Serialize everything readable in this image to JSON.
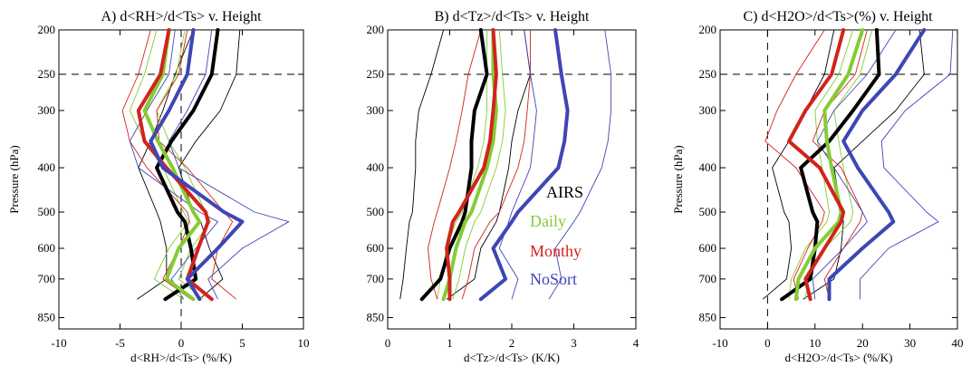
{
  "chart_data": [
    {
      "type": "line",
      "title": "A) d<RH>/d<Ts> v. Height",
      "xlabel": "d<RH>/d<Ts> (%/K)",
      "ylabel": "Pressure (hPa)",
      "xlim": [
        -10,
        10
      ],
      "ylim": [
        200,
        900
      ],
      "y_scale": "log",
      "y_inverted": true,
      "xticks": [
        -10,
        -5,
        0,
        5,
        10
      ],
      "yticks": [
        200,
        250,
        300,
        400,
        500,
        600,
        700,
        850
      ],
      "reference_lines": {
        "x": 0,
        "y": 250
      },
      "pressure": [
        200,
        250,
        300,
        350,
        400,
        500,
        525,
        600,
        700,
        775
      ],
      "series": [
        {
          "name": "AIRS",
          "color": "#000000",
          "values": [
            3.0,
            2.5,
            1.0,
            -0.8,
            -2.0,
            -0.3,
            0.3,
            0.8,
            1.2,
            -1.3
          ],
          "bounds": [
            [
              1.0,
              -0.5,
              -1.5,
              -2.5,
              -3.5,
              -2.0,
              -1.7,
              -1.2,
              -1.2,
              -3.6
            ],
            [
              4.8,
              4.5,
              3.2,
              1.2,
              -0.2,
              1.0,
              1.6,
              2.3,
              3.4,
              1.5
            ]
          ]
        },
        {
          "name": "Daily",
          "color": "#84cc33",
          "values": [
            -1.0,
            -1.5,
            -3.0,
            -1.9,
            -0.7,
            1.0,
            1.5,
            -0.2,
            -1.2,
            1.0
          ],
          "bounds": [
            [
              -2.0,
              -3.0,
              -4.2,
              -3.0,
              -1.5,
              0.2,
              0.6,
              -1.0,
              -2.2,
              0.2
            ],
            [
              0.3,
              -0.4,
              -2.0,
              -1.0,
              0.3,
              2.0,
              2.4,
              0.8,
              -0.2,
              1.8
            ]
          ]
        },
        {
          "name": "Monthy",
          "color": "#d0241c",
          "values": [
            -1.0,
            -1.7,
            -3.5,
            -3.0,
            -1.2,
            2.0,
            2.2,
            1.4,
            0.5,
            2.5
          ],
          "bounds": [
            [
              -2.5,
              -3.5,
              -4.8,
              -4.2,
              -2.8,
              0.5,
              0.7,
              -0.2,
              -1.5,
              0.8
            ],
            [
              0.5,
              -0.2,
              -2.0,
              -1.8,
              0.5,
              3.5,
              4.2,
              3.0,
              2.5,
              4.5
            ]
          ]
        },
        {
          "name": "NoSort",
          "color": "#3f46b4",
          "values": [
            1.0,
            0.5,
            -1.0,
            -2.5,
            -1.5,
            3.5,
            5.0,
            3.0,
            0.5,
            1.5
          ],
          "bounds": [
            [
              -0.5,
              -1.0,
              -2.8,
              -4.2,
              -3.5,
              1.5,
              3.0,
              1.2,
              -0.8,
              0.2
            ],
            [
              2.5,
              2.0,
              0.5,
              -1.0,
              -0.2,
              6.0,
              8.8,
              5.0,
              2.2,
              3.0
            ]
          ]
        }
      ]
    },
    {
      "type": "line",
      "title": "B) d<Tz>/d<Ts> v. Height",
      "xlabel": "d<Tz>/d<Ts> (K/K)",
      "ylabel": "",
      "xlim": [
        0,
        4
      ],
      "ylim": [
        200,
        900
      ],
      "y_scale": "log",
      "y_inverted": true,
      "xticks": [
        0,
        1,
        2,
        3,
        4
      ],
      "yticks": [
        200,
        250,
        300,
        400,
        500,
        600,
        700,
        850
      ],
      "reference_lines": {
        "y": 250
      },
      "pressure": [
        200,
        250,
        300,
        350,
        400,
        500,
        525,
        600,
        700,
        775
      ],
      "series": [
        {
          "name": "AIRS",
          "color": "#000000",
          "values": [
            1.5,
            1.6,
            1.4,
            1.35,
            1.35,
            1.25,
            1.2,
            1.0,
            0.85,
            0.55
          ],
          "bounds": [
            [
              0.9,
              0.7,
              0.5,
              0.45,
              0.45,
              0.4,
              0.35,
              0.3,
              0.25,
              0.2
            ],
            [
              2.2,
              2.3,
              2.1,
              2.0,
              1.95,
              1.8,
              1.75,
              1.5,
              1.4,
              0.95
            ]
          ]
        },
        {
          "name": "Daily",
          "color": "#84cc33",
          "values": [
            1.7,
            1.7,
            1.75,
            1.7,
            1.6,
            1.35,
            1.25,
            1.1,
            1.0,
            0.9
          ],
          "bounds": [
            [
              1.6,
              1.6,
              1.6,
              1.55,
              1.45,
              1.2,
              1.1,
              0.95,
              0.85,
              0.8
            ],
            [
              1.8,
              1.85,
              1.9,
              1.85,
              1.75,
              1.5,
              1.4,
              1.25,
              1.15,
              1.05
            ]
          ]
        },
        {
          "name": "Monthy",
          "color": "#d0241c",
          "values": [
            1.7,
            1.75,
            1.7,
            1.65,
            1.55,
            1.15,
            1.05,
            0.95,
            1.0,
            1.0
          ],
          "bounds": [
            [
              1.5,
              1.3,
              1.2,
              1.1,
              1.0,
              0.8,
              0.75,
              0.65,
              0.7,
              0.8
            ],
            [
              2.3,
              2.3,
              2.25,
              2.2,
              2.1,
              1.8,
              1.65,
              1.4,
              1.3,
              1.2
            ]
          ]
        },
        {
          "name": "NoSort",
          "color": "#3f46b4",
          "values": [
            2.7,
            2.8,
            2.9,
            2.85,
            2.75,
            2.1,
            2.0,
            1.7,
            1.9,
            1.5
          ],
          "bounds": [
            [
              2.2,
              2.3,
              2.4,
              2.35,
              2.3,
              2.0,
              1.95,
              1.8,
              2.1,
              2.0
            ],
            [
              3.5,
              3.6,
              3.6,
              3.55,
              3.45,
              3.1,
              3.0,
              2.7,
              2.8,
              2.6
            ]
          ]
        }
      ]
    },
    {
      "type": "line",
      "title": "C) d<H2O>/d<Ts>(%) v. Height",
      "xlabel": "d<H2O>/d<Ts> (%/K)",
      "ylabel": "Pressure (hPa)",
      "xlim": [
        -10,
        40
      ],
      "ylim": [
        200,
        900
      ],
      "y_scale": "log",
      "y_inverted": true,
      "xticks": [
        -10,
        0,
        10,
        20,
        30,
        40
      ],
      "yticks": [
        200,
        250,
        300,
        400,
        500,
        600,
        700,
        850
      ],
      "reference_lines": {
        "x": 0,
        "y": 250
      },
      "pressure": [
        200,
        250,
        300,
        350,
        400,
        500,
        525,
        600,
        700,
        775
      ],
      "series": [
        {
          "name": "AIRS",
          "color": "#000000",
          "values": [
            23.0,
            23.5,
            18.0,
            13.0,
            7.0,
            9.5,
            10.5,
            10.0,
            9.0,
            3.0
          ],
          "bounds": [
            [
              14.0,
              12.0,
              8.0,
              4.5,
              1.0,
              3.5,
              4.5,
              5.0,
              4.0,
              -1.0
            ],
            [
              32.0,
              33.0,
              27.0,
              20.0,
              14.0,
              15.5,
              16.0,
              15.5,
              14.0,
              7.5
            ]
          ]
        },
        {
          "name": "Daily",
          "color": "#84cc33",
          "values": [
            20.0,
            17.0,
            12.0,
            12.5,
            13.5,
            15.5,
            15.0,
            10.0,
            6.5,
            6.0
          ],
          "bounds": [
            [
              18.0,
              15.0,
              10.0,
              10.5,
              11.5,
              13.0,
              12.5,
              8.0,
              5.0,
              4.5
            ],
            [
              22.0,
              19.5,
              14.0,
              15.0,
              16.0,
              18.0,
              17.5,
              12.0,
              8.5,
              8.0
            ]
          ]
        },
        {
          "name": "Monthy",
          "color": "#d0241c",
          "values": [
            16.0,
            13.5,
            8.0,
            4.5,
            11.0,
            16.0,
            15.5,
            12.0,
            8.0,
            9.0
          ],
          "bounds": [
            [
              12.0,
              6.0,
              2.0,
              -0.5,
              6.0,
              12.0,
              11.5,
              8.5,
              5.5,
              6.5
            ],
            [
              21.0,
              18.5,
              12.0,
              9.5,
              15.5,
              20.0,
              19.5,
              16.0,
              12.0,
              13.0
            ]
          ]
        },
        {
          "name": "NoSort",
          "color": "#3f46b4",
          "values": [
            33.0,
            27.0,
            20.0,
            16.0,
            19.0,
            25.5,
            26.5,
            20.0,
            13.0,
            13.0
          ],
          "bounds": [
            [
              27.0,
              21.0,
              14.0,
              10.5,
              14.0,
              20.0,
              21.0,
              16.0,
              9.5,
              10.0
            ],
            [
              39.0,
              38.5,
              29.0,
              24.0,
              24.5,
              33.5,
              36.0,
              25.5,
              19.5,
              19.5
            ]
          ]
        }
      ]
    }
  ],
  "legend": {
    "placement": "right side of panel B",
    "entries": [
      {
        "label": "AIRS",
        "color": "#000000"
      },
      {
        "label": "Daily",
        "color": "#84cc33"
      },
      {
        "label": "Monthy",
        "color": "#d0241c"
      },
      {
        "label": "NoSort",
        "color": "#3f46b4"
      }
    ]
  }
}
